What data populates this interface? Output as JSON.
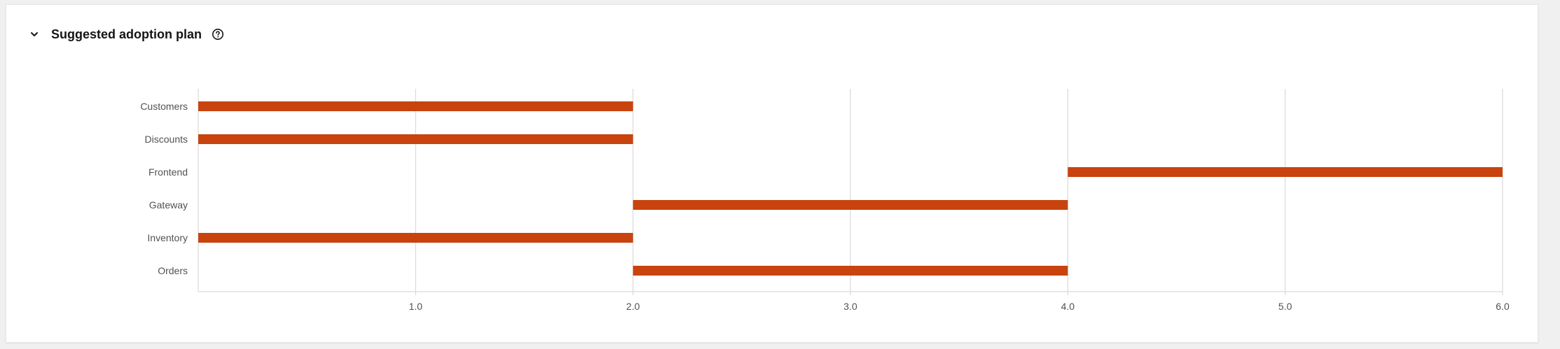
{
  "header": {
    "title": "Suggested adoption plan",
    "toggle_icon": "chevron-down-icon",
    "help_icon": "help-circle-icon"
  },
  "colors": {
    "bar": "#c9430f",
    "grid": "#d2d2d2",
    "axis": "#d2d2d2",
    "text": "#4f5255"
  },
  "chart_data": {
    "type": "bar",
    "orientation": "horizontal",
    "categories": [
      "Customers",
      "Discounts",
      "Frontend",
      "Gateway",
      "Inventory",
      "Orders"
    ],
    "series": [
      {
        "ranges": [
          [
            0,
            2
          ],
          [
            0,
            2
          ],
          [
            4,
            6
          ],
          [
            2,
            4
          ],
          [
            0,
            2
          ],
          [
            2,
            4
          ]
        ]
      }
    ],
    "x_ticks": [
      "1.0",
      "2.0",
      "3.0",
      "4.0",
      "5.0",
      "6.0"
    ],
    "xlim": [
      0,
      6
    ],
    "grid": true
  }
}
